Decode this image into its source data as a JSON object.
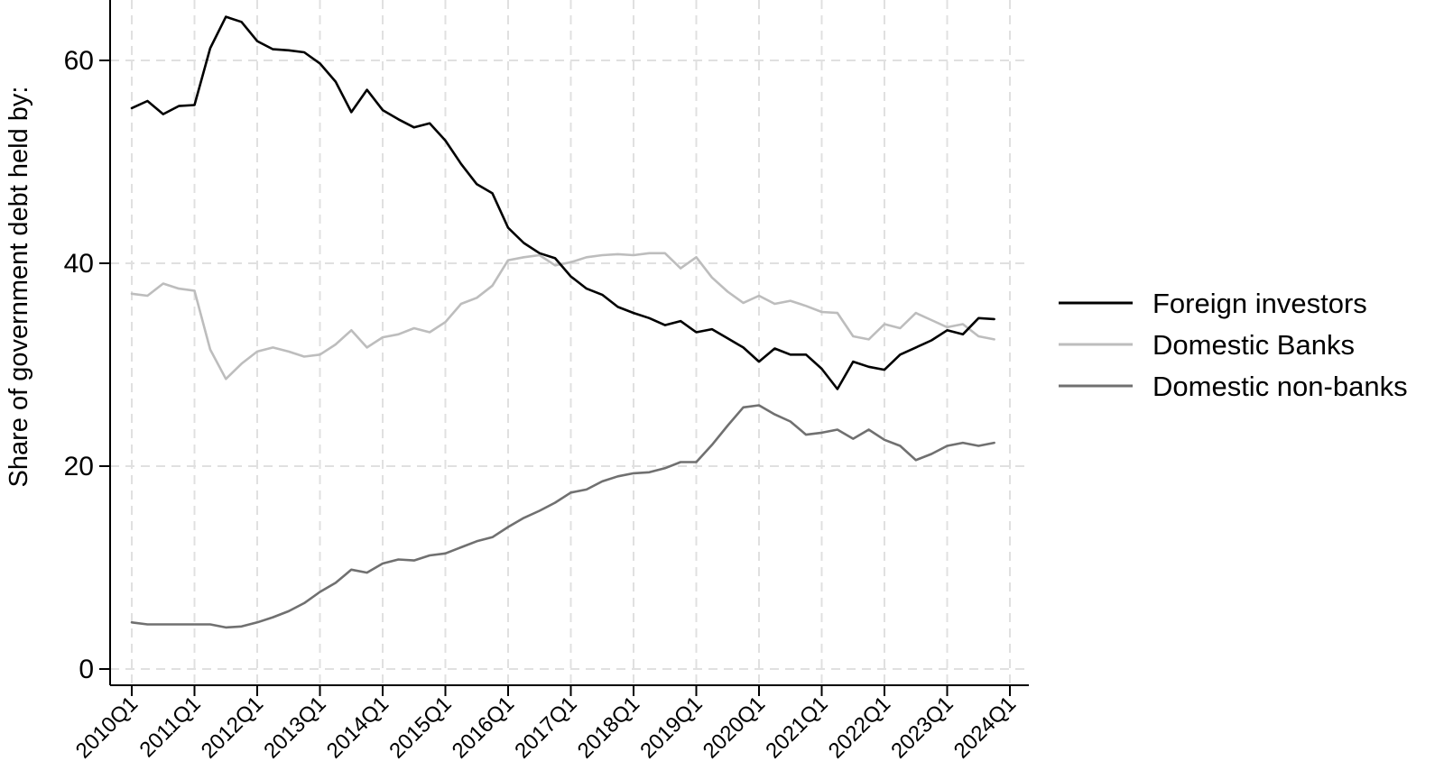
{
  "chart_data": {
    "type": "line",
    "title": "",
    "xlabel": "",
    "ylabel": "Share of government debt held by:",
    "ylim": [
      0,
      66
    ],
    "yticks": [
      0,
      20,
      40,
      60
    ],
    "xtick_labels": [
      "2010Q1",
      "2011Q1",
      "2012Q1",
      "2013Q1",
      "2014Q1",
      "2015Q1",
      "2016Q1",
      "2017Q1",
      "2018Q1",
      "2019Q1",
      "2020Q1",
      "2021Q1",
      "2022Q1",
      "2023Q1",
      "2024Q1"
    ],
    "grid": true,
    "legend_position": "right",
    "x": [
      "2010Q1",
      "2010Q2",
      "2010Q3",
      "2010Q4",
      "2011Q1",
      "2011Q2",
      "2011Q3",
      "2011Q4",
      "2012Q1",
      "2012Q2",
      "2012Q3",
      "2012Q4",
      "2013Q1",
      "2013Q2",
      "2013Q3",
      "2013Q4",
      "2014Q1",
      "2014Q2",
      "2014Q3",
      "2014Q4",
      "2015Q1",
      "2015Q2",
      "2015Q3",
      "2015Q4",
      "2016Q1",
      "2016Q2",
      "2016Q3",
      "2016Q4",
      "2017Q1",
      "2017Q2",
      "2017Q3",
      "2017Q4",
      "2018Q1",
      "2018Q2",
      "2018Q3",
      "2018Q4",
      "2019Q1",
      "2019Q2",
      "2019Q3",
      "2019Q4",
      "2020Q1",
      "2020Q2",
      "2020Q3",
      "2020Q4",
      "2021Q1",
      "2021Q2",
      "2021Q3",
      "2021Q4",
      "2022Q1",
      "2022Q2",
      "2022Q3",
      "2022Q4",
      "2023Q1",
      "2023Q2",
      "2023Q3",
      "2023Q4"
    ],
    "series": [
      {
        "name": "Foreign investors",
        "color": "#000000",
        "values": [
          55.3,
          56.0,
          54.7,
          55.5,
          55.6,
          61.2,
          64.3,
          63.8,
          61.9,
          61.1,
          61.0,
          60.8,
          59.7,
          57.9,
          54.9,
          57.1,
          55.1,
          54.2,
          53.4,
          53.8,
          52.1,
          49.8,
          47.8,
          46.9,
          43.5,
          42.0,
          41.0,
          40.5,
          38.7,
          37.5,
          36.9,
          35.7,
          35.1,
          34.6,
          33.9,
          34.3,
          33.2,
          33.5,
          32.6,
          31.7,
          30.3,
          31.6,
          31.0,
          31.0,
          29.6,
          27.6,
          30.3,
          29.8,
          29.5,
          31.0,
          31.7,
          32.4,
          33.4,
          33.0,
          34.6,
          34.5
        ]
      },
      {
        "name": "Domestic Banks",
        "color": "#bdbdbd",
        "values": [
          37.0,
          36.8,
          38.0,
          37.5,
          37.3,
          31.5,
          28.6,
          30.1,
          31.3,
          31.7,
          31.3,
          30.8,
          31.0,
          32.0,
          33.4,
          31.7,
          32.7,
          33.0,
          33.6,
          33.2,
          34.2,
          36.0,
          36.6,
          37.8,
          40.3,
          40.6,
          40.8,
          39.8,
          40.1,
          40.6,
          40.8,
          40.9,
          40.8,
          41.0,
          41.0,
          39.5,
          40.6,
          38.6,
          37.2,
          36.1,
          36.8,
          36.0,
          36.3,
          35.8,
          35.2,
          35.1,
          32.8,
          32.5,
          34.0,
          33.6,
          35.1,
          34.4,
          33.7,
          34.0,
          32.8,
          32.5
        ]
      },
      {
        "name": "Domestic non-banks",
        "color": "#707070",
        "values": [
          4.6,
          4.4,
          4.4,
          4.4,
          4.4,
          4.4,
          4.1,
          4.2,
          4.6,
          5.1,
          5.7,
          6.5,
          7.6,
          8.5,
          9.8,
          9.5,
          10.4,
          10.8,
          10.7,
          11.2,
          11.4,
          12.0,
          12.6,
          13.0,
          14.0,
          14.9,
          15.6,
          16.4,
          17.4,
          17.7,
          18.5,
          19.0,
          19.3,
          19.4,
          19.8,
          20.4,
          20.4,
          22.1,
          24.0,
          25.8,
          26.0,
          25.1,
          24.4,
          23.1,
          23.3,
          23.6,
          22.7,
          23.6,
          22.6,
          22.0,
          20.6,
          21.2,
          22.0,
          22.3,
          22.0,
          22.3
        ]
      }
    ]
  }
}
